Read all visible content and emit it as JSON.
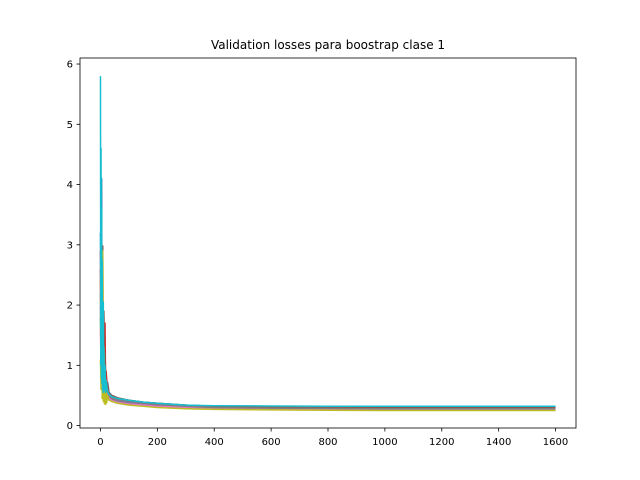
{
  "chart_data": {
    "type": "line",
    "title": "Validation losses para boostrap clase 1",
    "xlabel": "",
    "ylabel": "",
    "xlim": [
      -72,
      1672
    ],
    "ylim": [
      -0.04,
      6.1
    ],
    "xticks": [
      0,
      200,
      400,
      600,
      800,
      1000,
      1200,
      1400,
      1600
    ],
    "yticks": [
      0,
      1,
      2,
      3,
      4,
      5,
      6
    ],
    "grid": false,
    "legend": "none",
    "series": [
      {
        "color": "#1f77b4",
        "values": [
          [
            0,
            3.2
          ],
          [
            2,
            1.5
          ],
          [
            4,
            4.1
          ],
          [
            6,
            0.9
          ],
          [
            8,
            2.0
          ],
          [
            10,
            0.7
          ],
          [
            12,
            1.6
          ],
          [
            14,
            0.62
          ],
          [
            16,
            0.95
          ],
          [
            20,
            0.58
          ],
          [
            25,
            0.72
          ],
          [
            30,
            0.55
          ],
          [
            40,
            0.5
          ],
          [
            60,
            0.46
          ],
          [
            100,
            0.42
          ],
          [
            150,
            0.39
          ],
          [
            200,
            0.37
          ],
          [
            300,
            0.34
          ],
          [
            400,
            0.32
          ],
          [
            600,
            0.31
          ],
          [
            800,
            0.305
          ],
          [
            1000,
            0.3
          ],
          [
            1200,
            0.3
          ],
          [
            1400,
            0.3
          ],
          [
            1600,
            0.3
          ]
        ]
      },
      {
        "color": "#ff7f0e",
        "values": [
          [
            0,
            2.4
          ],
          [
            2,
            1.2
          ],
          [
            4,
            2.8
          ],
          [
            6,
            0.8
          ],
          [
            8,
            1.4
          ],
          [
            10,
            0.6
          ],
          [
            12,
            1.1
          ],
          [
            14,
            0.55
          ],
          [
            16,
            0.8
          ],
          [
            20,
            0.52
          ],
          [
            25,
            0.6
          ],
          [
            30,
            0.5
          ],
          [
            40,
            0.46
          ],
          [
            60,
            0.43
          ],
          [
            100,
            0.4
          ],
          [
            150,
            0.37
          ],
          [
            200,
            0.35
          ],
          [
            300,
            0.32
          ],
          [
            400,
            0.3
          ],
          [
            600,
            0.29
          ],
          [
            800,
            0.285
          ],
          [
            1000,
            0.28
          ],
          [
            1200,
            0.28
          ],
          [
            1400,
            0.28
          ],
          [
            1600,
            0.28
          ]
        ]
      },
      {
        "color": "#2ca02c",
        "values": [
          [
            0,
            1.8
          ],
          [
            2,
            1.0
          ],
          [
            4,
            2.1
          ],
          [
            6,
            0.7
          ],
          [
            8,
            1.2
          ],
          [
            10,
            0.55
          ],
          [
            12,
            0.9
          ],
          [
            14,
            0.5
          ],
          [
            16,
            0.7
          ],
          [
            20,
            0.48
          ],
          [
            25,
            0.55
          ],
          [
            30,
            0.46
          ],
          [
            40,
            0.43
          ],
          [
            60,
            0.4
          ],
          [
            100,
            0.37
          ],
          [
            150,
            0.35
          ],
          [
            200,
            0.33
          ],
          [
            300,
            0.3
          ],
          [
            400,
            0.28
          ],
          [
            600,
            0.27
          ],
          [
            800,
            0.265
          ],
          [
            1000,
            0.26
          ],
          [
            1200,
            0.26
          ],
          [
            1400,
            0.26
          ],
          [
            1600,
            0.26
          ]
        ]
      },
      {
        "color": "#d62728",
        "values": [
          [
            0,
            2.6
          ],
          [
            2,
            1.3
          ],
          [
            4,
            3.0
          ],
          [
            6,
            0.85
          ],
          [
            8,
            1.85
          ],
          [
            10,
            0.65
          ],
          [
            12,
            1.8
          ],
          [
            14,
            0.6
          ],
          [
            16,
            1.7
          ],
          [
            18,
            0.58
          ],
          [
            20,
            0.9
          ],
          [
            25,
            0.56
          ],
          [
            30,
            0.52
          ],
          [
            40,
            0.48
          ],
          [
            60,
            0.44
          ],
          [
            100,
            0.41
          ],
          [
            150,
            0.38
          ],
          [
            200,
            0.36
          ],
          [
            300,
            0.33
          ],
          [
            400,
            0.31
          ],
          [
            600,
            0.3
          ],
          [
            800,
            0.295
          ],
          [
            1000,
            0.29
          ],
          [
            1200,
            0.29
          ],
          [
            1400,
            0.29
          ],
          [
            1600,
            0.29
          ]
        ]
      },
      {
        "color": "#9467bd",
        "values": [
          [
            0,
            2.0
          ],
          [
            2,
            1.1
          ],
          [
            4,
            2.4
          ],
          [
            6,
            0.75
          ],
          [
            8,
            1.3
          ],
          [
            10,
            0.6
          ],
          [
            12,
            1.0
          ],
          [
            14,
            0.52
          ],
          [
            16,
            0.75
          ],
          [
            20,
            0.5
          ],
          [
            25,
            0.58
          ],
          [
            30,
            0.48
          ],
          [
            40,
            0.45
          ],
          [
            60,
            0.42
          ],
          [
            100,
            0.39
          ],
          [
            150,
            0.36
          ],
          [
            200,
            0.34
          ],
          [
            300,
            0.31
          ],
          [
            400,
            0.29
          ],
          [
            600,
            0.28
          ],
          [
            800,
            0.275
          ],
          [
            1000,
            0.27
          ],
          [
            1200,
            0.27
          ],
          [
            1400,
            0.27
          ],
          [
            1600,
            0.27
          ]
        ]
      },
      {
        "color": "#8c564b",
        "values": [
          [
            0,
            2.9
          ],
          [
            2,
            1.4
          ],
          [
            4,
            3.3
          ],
          [
            6,
            0.9
          ],
          [
            8,
            2.98
          ],
          [
            10,
            0.7
          ],
          [
            12,
            1.9
          ],
          [
            14,
            0.62
          ],
          [
            16,
            1.2
          ],
          [
            20,
            0.57
          ],
          [
            25,
            0.7
          ],
          [
            30,
            0.54
          ],
          [
            40,
            0.5
          ],
          [
            60,
            0.46
          ],
          [
            100,
            0.42
          ],
          [
            150,
            0.39
          ],
          [
            200,
            0.37
          ],
          [
            300,
            0.34
          ],
          [
            400,
            0.32
          ],
          [
            600,
            0.31
          ],
          [
            800,
            0.3
          ],
          [
            1000,
            0.3
          ],
          [
            1200,
            0.3
          ],
          [
            1400,
            0.3
          ],
          [
            1600,
            0.3
          ]
        ]
      },
      {
        "color": "#e377c2",
        "values": [
          [
            0,
            1.6
          ],
          [
            2,
            0.9
          ],
          [
            4,
            1.9
          ],
          [
            6,
            0.7
          ],
          [
            8,
            1.1
          ],
          [
            10,
            0.55
          ],
          [
            12,
            0.8
          ],
          [
            14,
            0.5
          ],
          [
            16,
            0.65
          ],
          [
            20,
            0.47
          ],
          [
            25,
            0.52
          ],
          [
            30,
            0.45
          ],
          [
            40,
            0.42
          ],
          [
            60,
            0.39
          ],
          [
            100,
            0.36
          ],
          [
            150,
            0.34
          ],
          [
            200,
            0.32
          ],
          [
            300,
            0.3
          ],
          [
            400,
            0.28
          ],
          [
            600,
            0.27
          ],
          [
            800,
            0.265
          ],
          [
            1000,
            0.26
          ],
          [
            1200,
            0.26
          ],
          [
            1400,
            0.26
          ],
          [
            1600,
            0.26
          ]
        ]
      },
      {
        "color": "#7f7f7f",
        "values": [
          [
            0,
            2.2
          ],
          [
            2,
            1.2
          ],
          [
            4,
            2.6
          ],
          [
            6,
            0.8
          ],
          [
            8,
            1.5
          ],
          [
            10,
            0.6
          ],
          [
            12,
            1.2
          ],
          [
            14,
            0.55
          ],
          [
            16,
            0.85
          ],
          [
            20,
            0.52
          ],
          [
            25,
            0.6
          ],
          [
            30,
            0.5
          ],
          [
            40,
            0.46
          ],
          [
            60,
            0.43
          ],
          [
            100,
            0.4
          ],
          [
            150,
            0.37
          ],
          [
            200,
            0.35
          ],
          [
            300,
            0.32
          ],
          [
            400,
            0.3
          ],
          [
            600,
            0.29
          ],
          [
            800,
            0.285
          ],
          [
            1000,
            0.28
          ],
          [
            1200,
            0.28
          ],
          [
            1400,
            0.28
          ],
          [
            1600,
            0.28
          ]
        ]
      },
      {
        "color": "#bcbd22",
        "values": [
          [
            0,
            1.1
          ],
          [
            2,
            0.6
          ],
          [
            4,
            1.5
          ],
          [
            6,
            0.45
          ],
          [
            8,
            2.9
          ],
          [
            10,
            0.4
          ],
          [
            12,
            1.3
          ],
          [
            14,
            0.36
          ],
          [
            16,
            0.7
          ],
          [
            18,
            0.35
          ],
          [
            20,
            0.55
          ],
          [
            22,
            0.38
          ],
          [
            25,
            0.5
          ],
          [
            30,
            0.42
          ],
          [
            40,
            0.4
          ],
          [
            60,
            0.37
          ],
          [
            100,
            0.34
          ],
          [
            150,
            0.32
          ],
          [
            200,
            0.3
          ],
          [
            300,
            0.28
          ],
          [
            400,
            0.27
          ],
          [
            600,
            0.26
          ],
          [
            800,
            0.255
          ],
          [
            1000,
            0.25
          ],
          [
            1200,
            0.25
          ],
          [
            1400,
            0.25
          ],
          [
            1600,
            0.25
          ]
        ]
      },
      {
        "color": "#17becf",
        "values": [
          [
            0,
            5.8
          ],
          [
            1,
            1.0
          ],
          [
            2,
            4.6
          ],
          [
            3,
            0.8
          ],
          [
            4,
            3.6
          ],
          [
            5,
            0.7
          ],
          [
            6,
            2.75
          ],
          [
            7,
            0.6
          ],
          [
            8,
            1.6
          ],
          [
            9,
            0.55
          ],
          [
            10,
            2.05
          ],
          [
            11,
            0.6
          ],
          [
            12,
            1.3
          ],
          [
            14,
            0.58
          ],
          [
            16,
            1.0
          ],
          [
            18,
            0.55
          ],
          [
            20,
            0.75
          ],
          [
            25,
            0.56
          ],
          [
            30,
            0.52
          ],
          [
            40,
            0.48
          ],
          [
            60,
            0.45
          ],
          [
            100,
            0.42
          ],
          [
            150,
            0.39
          ],
          [
            200,
            0.37
          ],
          [
            300,
            0.34
          ],
          [
            400,
            0.33
          ],
          [
            600,
            0.325
          ],
          [
            800,
            0.32
          ],
          [
            1000,
            0.32
          ],
          [
            1200,
            0.32
          ],
          [
            1400,
            0.32
          ],
          [
            1600,
            0.32
          ]
        ]
      }
    ]
  }
}
